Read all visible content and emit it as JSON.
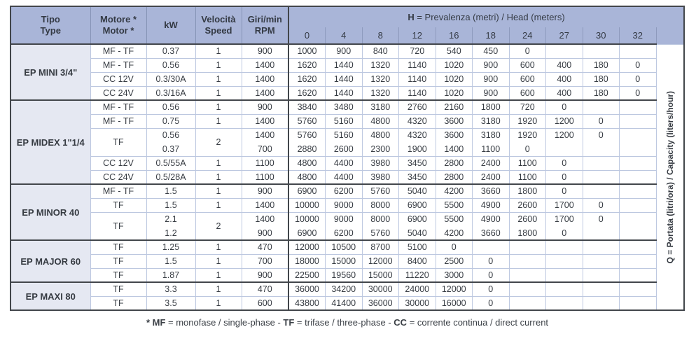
{
  "table": {
    "header": {
      "tipo": "Tipo\nType",
      "motore": "Motore *\nMotor *",
      "kw": "kW",
      "velocita": "Velocità\nSpeed",
      "giri": "Giri/min\nRPM",
      "h_bold": "H",
      "h_rest": " = Prevalenza (metri) / Head (meters)",
      "head_values": [
        "0",
        "4",
        "8",
        "12",
        "16",
        "18",
        "24",
        "27",
        "30",
        "32"
      ]
    },
    "q_label": "Q = Portata (litri/ora) / Capacity (liters/hour)",
    "groups": [
      {
        "name": "EP MINI 3/4\"",
        "rows": [
          {
            "motor": "MF - TF",
            "kw": "0.37",
            "speed": "1",
            "rpm": "900",
            "q": [
              "1000",
              "900",
              "840",
              "720",
              "540",
              "450",
              "0",
              "",
              "",
              ""
            ]
          },
          {
            "motor": "MF - TF",
            "kw": "0.56",
            "speed": "1",
            "rpm": "1400",
            "q": [
              "1620",
              "1440",
              "1320",
              "1140",
              "1020",
              "900",
              "600",
              "400",
              "180",
              "0"
            ]
          },
          {
            "motor": "CC 12V",
            "kw": "0.3/30A",
            "speed": "1",
            "rpm": "1400",
            "q": [
              "1620",
              "1440",
              "1320",
              "1140",
              "1020",
              "900",
              "600",
              "400",
              "180",
              "0"
            ]
          },
          {
            "motor": "CC 24V",
            "kw": "0.3/16A",
            "speed": "1",
            "rpm": "1400",
            "q": [
              "1620",
              "1440",
              "1320",
              "1140",
              "1020",
              "900",
              "600",
              "400",
              "180",
              "0"
            ]
          }
        ]
      },
      {
        "name": "EP MIDEX 1\"1/4",
        "rows": [
          {
            "motor": "MF - TF",
            "kw": "0.56",
            "speed": "1",
            "rpm": "900",
            "q": [
              "3840",
              "3480",
              "3180",
              "2760",
              "2160",
              "1800",
              "720",
              "0",
              "",
              ""
            ]
          },
          {
            "motor": "MF - TF",
            "kw": "0.75",
            "speed": "1",
            "rpm": "1400",
            "q": [
              "5760",
              "5160",
              "4800",
              "4320",
              "3600",
              "3180",
              "1920",
              "1200",
              "0",
              ""
            ]
          },
          {
            "motor": "TF",
            "kw": "0.56",
            "speed": "2",
            "rpm": "1400",
            "span_start": true,
            "q": [
              "5760",
              "5160",
              "4800",
              "4320",
              "3600",
              "3180",
              "1920",
              "1200",
              "0",
              ""
            ]
          },
          {
            "kw": "0.37",
            "rpm": "700",
            "span_end": true,
            "q": [
              "2880",
              "2600",
              "2300",
              "1900",
              "1400",
              "1100",
              "0",
              "",
              "",
              ""
            ]
          },
          {
            "motor": "CC 12V",
            "kw": "0.5/55A",
            "speed": "1",
            "rpm": "1100",
            "q": [
              "4800",
              "4400",
              "3980",
              "3450",
              "2800",
              "2400",
              "1100",
              "0",
              "",
              ""
            ]
          },
          {
            "motor": "CC 24V",
            "kw": "0.5/28A",
            "speed": "1",
            "rpm": "1100",
            "q": [
              "4800",
              "4400",
              "3980",
              "3450",
              "2800",
              "2400",
              "1100",
              "0",
              "",
              ""
            ]
          }
        ]
      },
      {
        "name": "EP MINOR 40",
        "rows": [
          {
            "motor": "MF - TF",
            "kw": "1.5",
            "speed": "1",
            "rpm": "900",
            "q": [
              "6900",
              "6200",
              "5760",
              "5040",
              "4200",
              "3660",
              "1800",
              "0",
              "",
              ""
            ]
          },
          {
            "motor": "TF",
            "kw": "1.5",
            "speed": "1",
            "rpm": "1400",
            "q": [
              "10000",
              "9000",
              "8000",
              "6900",
              "5500",
              "4900",
              "2600",
              "1700",
              "0",
              ""
            ]
          },
          {
            "motor": "TF",
            "kw": "2.1",
            "speed": "2",
            "rpm": "1400",
            "span_start": true,
            "q": [
              "10000",
              "9000",
              "8000",
              "6900",
              "5500",
              "4900",
              "2600",
              "1700",
              "0",
              ""
            ]
          },
          {
            "kw": "1.2",
            "rpm": "900",
            "span_end": true,
            "q": [
              "6900",
              "6200",
              "5760",
              "5040",
              "4200",
              "3660",
              "1800",
              "0",
              "",
              ""
            ]
          }
        ]
      },
      {
        "name": "EP MAJOR 60",
        "rows": [
          {
            "motor": "TF",
            "kw": "1.25",
            "speed": "1",
            "rpm": "470",
            "q": [
              "12000",
              "10500",
              "8700",
              "5100",
              "0",
              "",
              "",
              "",
              "",
              ""
            ]
          },
          {
            "motor": "TF",
            "kw": "1.5",
            "speed": "1",
            "rpm": "700",
            "q": [
              "18000",
              "15000",
              "12000",
              "8400",
              "2500",
              "0",
              "",
              "",
              "",
              ""
            ]
          },
          {
            "motor": "TF",
            "kw": "1.87",
            "speed": "1",
            "rpm": "900",
            "q": [
              "22500",
              "19560",
              "15000",
              "11220",
              "3000",
              "0",
              "",
              "",
              "",
              ""
            ]
          }
        ]
      },
      {
        "name": "EP MAXI 80",
        "rows": [
          {
            "motor": "TF",
            "kw": "3.3",
            "speed": "1",
            "rpm": "470",
            "q": [
              "36000",
              "34200",
              "30000",
              "24000",
              "12000",
              "0",
              "",
              "",
              "",
              ""
            ]
          },
          {
            "motor": "TF",
            "kw": "3.5",
            "speed": "1",
            "rpm": "600",
            "q": [
              "43800",
              "41400",
              "36000",
              "30000",
              "16000",
              "0",
              "",
              "",
              "",
              ""
            ]
          }
        ]
      }
    ],
    "footnote_segments": [
      {
        "text": "* MF",
        "bold": true
      },
      {
        "text": " = monofase / single-phase - ",
        "bold": false
      },
      {
        "text": "TF",
        "bold": true
      },
      {
        "text": " = trifase / three-phase - ",
        "bold": false
      },
      {
        "text": "CC",
        "bold": true
      },
      {
        "text": " = corrente continua / direct current",
        "bold": false
      }
    ]
  },
  "colors": {
    "header_blue": "#a9b5d8",
    "group_cell_lavender": "#e5e8f2",
    "thin_border": "#bdc8e0",
    "thick_border": "#42464b",
    "text": "#363b42"
  }
}
